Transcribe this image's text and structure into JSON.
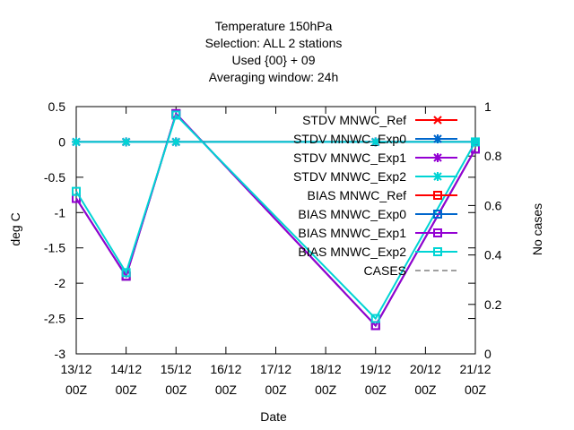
{
  "chart_data": {
    "type": "line",
    "title_lines": [
      "Temperature 150hPa",
      "Selection: ALL       2 stations",
      "Used {00} + 09",
      "Averaging window: 24h"
    ],
    "xlabel": "Date",
    "ylabel": "deg C",
    "y2label": "No cases",
    "categories": [
      {
        "date": "13/12",
        "hour": "00Z"
      },
      {
        "date": "14/12",
        "hour": "00Z"
      },
      {
        "date": "15/12",
        "hour": "00Z"
      },
      {
        "date": "16/12",
        "hour": "00Z"
      },
      {
        "date": "17/12",
        "hour": "00Z"
      },
      {
        "date": "18/12",
        "hour": "00Z"
      },
      {
        "date": "19/12",
        "hour": "00Z"
      },
      {
        "date": "20/12",
        "hour": "00Z"
      },
      {
        "date": "21/12",
        "hour": "00Z"
      }
    ],
    "xlim": [
      0,
      8
    ],
    "ylim": [
      -3,
      0.5
    ],
    "yticks": [
      0.5,
      0,
      -0.5,
      -1,
      -1.5,
      -2,
      -2.5,
      -3
    ],
    "y2lim": [
      0,
      1
    ],
    "y2ticks": [
      1,
      0.8,
      0.6,
      0.4,
      0.2,
      0
    ],
    "grid": false,
    "legend_position": "top-right",
    "series": [
      {
        "name": "STDV MNWC_Ref",
        "color": "#ff0000",
        "marker": "x",
        "axis": "y1",
        "x": [
          0,
          1,
          2,
          6,
          8
        ],
        "values": [
          0,
          0,
          0,
          0,
          0
        ]
      },
      {
        "name": "STDV MNWC_Exp0",
        "color": "#0066cc",
        "marker": "star",
        "axis": "y1",
        "x": [
          0,
          1,
          2,
          6,
          8
        ],
        "values": [
          0,
          0,
          0,
          0,
          0
        ]
      },
      {
        "name": "STDV MNWC_Exp1",
        "color": "#9400d3",
        "marker": "star",
        "axis": "y1",
        "x": [
          0,
          1,
          2,
          6,
          8
        ],
        "values": [
          0,
          0,
          0,
          0,
          0
        ]
      },
      {
        "name": "STDV MNWC_Exp2",
        "color": "#00d4d4",
        "marker": "star",
        "axis": "y1",
        "x": [
          0,
          1,
          2,
          6,
          8
        ],
        "values": [
          0,
          0,
          0,
          0,
          0
        ]
      },
      {
        "name": "BIAS MNWC_Ref",
        "color": "#ff0000",
        "marker": "square",
        "axis": "y1",
        "x": [
          0,
          1,
          2,
          6,
          8
        ],
        "values": [
          -0.8,
          -1.9,
          0.4,
          -2.6,
          -0.1
        ]
      },
      {
        "name": "BIAS MNWC_Exp0",
        "color": "#0066cc",
        "marker": "square",
        "axis": "y1",
        "x": [
          0,
          1,
          2,
          6,
          8
        ],
        "values": [
          -0.8,
          -1.9,
          0.4,
          -2.6,
          -0.1
        ]
      },
      {
        "name": "BIAS MNWC_Exp1",
        "color": "#9400d3",
        "marker": "square",
        "axis": "y1",
        "x": [
          0,
          1,
          2,
          6,
          8
        ],
        "values": [
          -0.8,
          -1.9,
          0.4,
          -2.6,
          -0.1
        ]
      },
      {
        "name": "BIAS MNWC_Exp2",
        "color": "#00d4d4",
        "marker": "square",
        "axis": "y1",
        "x": [
          0,
          1,
          2,
          6,
          8
        ],
        "values": [
          -0.7,
          -1.85,
          0.38,
          -2.5,
          0.0
        ]
      },
      {
        "name": "CASES",
        "color": "#a0a0a0",
        "marker": "none",
        "dashed": true,
        "axis": "y2",
        "x": [],
        "values": []
      }
    ]
  }
}
